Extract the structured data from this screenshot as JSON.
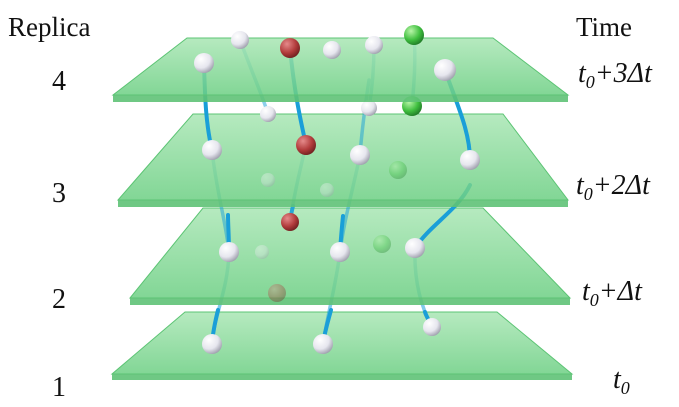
{
  "headers": {
    "replica": "Replica",
    "time": "Time"
  },
  "replica_numbers": [
    "4",
    "3",
    "2",
    "1"
  ],
  "time_labels": [
    {
      "base": "t",
      "sub": "0",
      "suffix": "+3Δt"
    },
    {
      "base": "t",
      "sub": "0",
      "suffix": "+2Δt"
    },
    {
      "base": "t",
      "sub": "0",
      "suffix": "+Δt"
    },
    {
      "base": "t",
      "sub": "0",
      "suffix": ""
    }
  ],
  "colors": {
    "plane_fill": "#7fd88f",
    "plane_edge": "#5cc474",
    "trajectory": "#1a9fd8",
    "particle_white": "#f4f4f8",
    "particle_red": "#b03a3a",
    "particle_green": "#3fbf3f",
    "text": "#111111"
  }
}
